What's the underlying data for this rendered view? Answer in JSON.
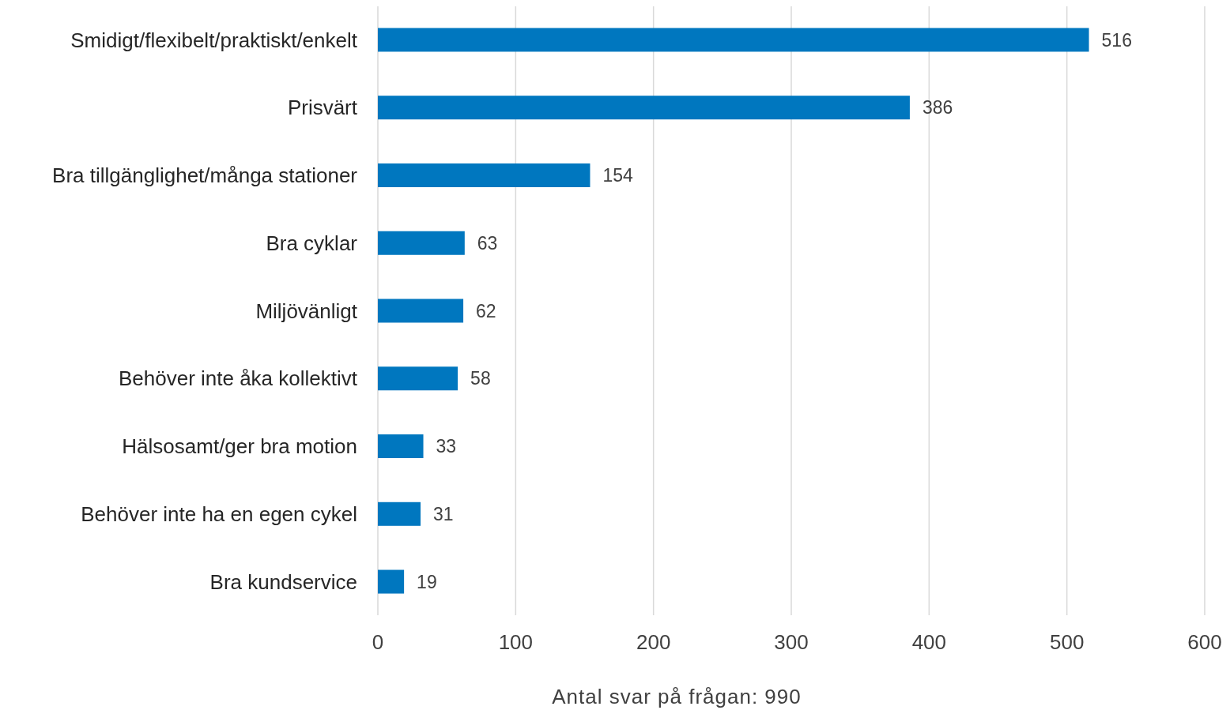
{
  "chart_data": {
    "type": "bar",
    "orientation": "horizontal",
    "categories": [
      "Smidigt/flexibelt/praktiskt/enkelt",
      "Prisvärt",
      "Bra tillgänglighet/många stationer",
      "Bra cyklar",
      "Miljövänligt",
      "Behöver inte åka kollektivt",
      "Hälsosamt/ger bra motion",
      "Behöver inte ha en egen cykel",
      "Bra kundservice"
    ],
    "values": [
      516,
      386,
      154,
      63,
      62,
      58,
      33,
      31,
      19
    ],
    "color": "#0077bf",
    "xlim": [
      0,
      600
    ],
    "xticks": [
      0,
      100,
      200,
      300,
      400,
      500,
      600
    ],
    "xlabel": "Antal svar på frågan: 990",
    "grid": "x",
    "data_labels": true
  }
}
